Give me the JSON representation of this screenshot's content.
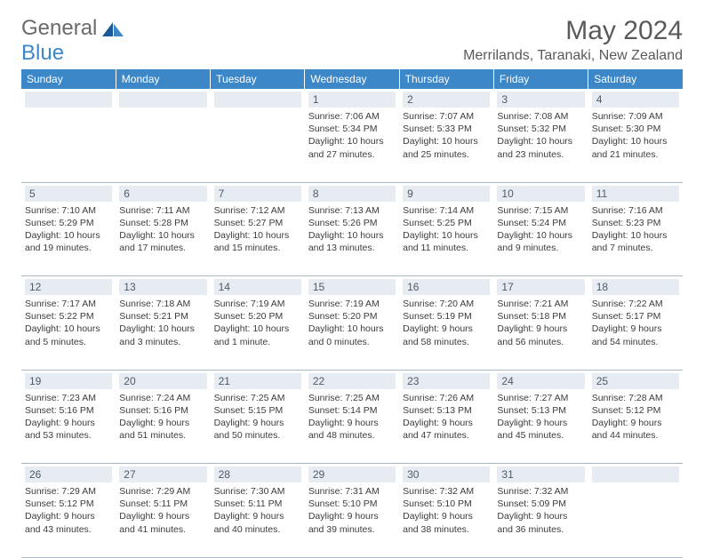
{
  "logo": {
    "text1": "General",
    "text2": "Blue",
    "color1": "#6a6a6a",
    "color2": "#3b87c8"
  },
  "title": "May 2024",
  "location": "Merrilands, Taranaki, New Zealand",
  "colors": {
    "header_bg": "#3b87c8",
    "header_text": "#ffffff",
    "daynum_bg": "#e6ecf2",
    "border": "#a9b8c6"
  },
  "weekdays": [
    "Sunday",
    "Monday",
    "Tuesday",
    "Wednesday",
    "Thursday",
    "Friday",
    "Saturday"
  ],
  "weeks": [
    [
      null,
      null,
      null,
      {
        "n": "1",
        "sr": "7:06 AM",
        "ss": "5:34 PM",
        "dl": "10 hours and 27 minutes."
      },
      {
        "n": "2",
        "sr": "7:07 AM",
        "ss": "5:33 PM",
        "dl": "10 hours and 25 minutes."
      },
      {
        "n": "3",
        "sr": "7:08 AM",
        "ss": "5:32 PM",
        "dl": "10 hours and 23 minutes."
      },
      {
        "n": "4",
        "sr": "7:09 AM",
        "ss": "5:30 PM",
        "dl": "10 hours and 21 minutes."
      }
    ],
    [
      {
        "n": "5",
        "sr": "7:10 AM",
        "ss": "5:29 PM",
        "dl": "10 hours and 19 minutes."
      },
      {
        "n": "6",
        "sr": "7:11 AM",
        "ss": "5:28 PM",
        "dl": "10 hours and 17 minutes."
      },
      {
        "n": "7",
        "sr": "7:12 AM",
        "ss": "5:27 PM",
        "dl": "10 hours and 15 minutes."
      },
      {
        "n": "8",
        "sr": "7:13 AM",
        "ss": "5:26 PM",
        "dl": "10 hours and 13 minutes."
      },
      {
        "n": "9",
        "sr": "7:14 AM",
        "ss": "5:25 PM",
        "dl": "10 hours and 11 minutes."
      },
      {
        "n": "10",
        "sr": "7:15 AM",
        "ss": "5:24 PM",
        "dl": "10 hours and 9 minutes."
      },
      {
        "n": "11",
        "sr": "7:16 AM",
        "ss": "5:23 PM",
        "dl": "10 hours and 7 minutes."
      }
    ],
    [
      {
        "n": "12",
        "sr": "7:17 AM",
        "ss": "5:22 PM",
        "dl": "10 hours and 5 minutes."
      },
      {
        "n": "13",
        "sr": "7:18 AM",
        "ss": "5:21 PM",
        "dl": "10 hours and 3 minutes."
      },
      {
        "n": "14",
        "sr": "7:19 AM",
        "ss": "5:20 PM",
        "dl": "10 hours and 1 minute."
      },
      {
        "n": "15",
        "sr": "7:19 AM",
        "ss": "5:20 PM",
        "dl": "10 hours and 0 minutes."
      },
      {
        "n": "16",
        "sr": "7:20 AM",
        "ss": "5:19 PM",
        "dl": "9 hours and 58 minutes."
      },
      {
        "n": "17",
        "sr": "7:21 AM",
        "ss": "5:18 PM",
        "dl": "9 hours and 56 minutes."
      },
      {
        "n": "18",
        "sr": "7:22 AM",
        "ss": "5:17 PM",
        "dl": "9 hours and 54 minutes."
      }
    ],
    [
      {
        "n": "19",
        "sr": "7:23 AM",
        "ss": "5:16 PM",
        "dl": "9 hours and 53 minutes."
      },
      {
        "n": "20",
        "sr": "7:24 AM",
        "ss": "5:16 PM",
        "dl": "9 hours and 51 minutes."
      },
      {
        "n": "21",
        "sr": "7:25 AM",
        "ss": "5:15 PM",
        "dl": "9 hours and 50 minutes."
      },
      {
        "n": "22",
        "sr": "7:25 AM",
        "ss": "5:14 PM",
        "dl": "9 hours and 48 minutes."
      },
      {
        "n": "23",
        "sr": "7:26 AM",
        "ss": "5:13 PM",
        "dl": "9 hours and 47 minutes."
      },
      {
        "n": "24",
        "sr": "7:27 AM",
        "ss": "5:13 PM",
        "dl": "9 hours and 45 minutes."
      },
      {
        "n": "25",
        "sr": "7:28 AM",
        "ss": "5:12 PM",
        "dl": "9 hours and 44 minutes."
      }
    ],
    [
      {
        "n": "26",
        "sr": "7:29 AM",
        "ss": "5:12 PM",
        "dl": "9 hours and 43 minutes."
      },
      {
        "n": "27",
        "sr": "7:29 AM",
        "ss": "5:11 PM",
        "dl": "9 hours and 41 minutes."
      },
      {
        "n": "28",
        "sr": "7:30 AM",
        "ss": "5:11 PM",
        "dl": "9 hours and 40 minutes."
      },
      {
        "n": "29",
        "sr": "7:31 AM",
        "ss": "5:10 PM",
        "dl": "9 hours and 39 minutes."
      },
      {
        "n": "30",
        "sr": "7:32 AM",
        "ss": "5:10 PM",
        "dl": "9 hours and 38 minutes."
      },
      {
        "n": "31",
        "sr": "7:32 AM",
        "ss": "5:09 PM",
        "dl": "9 hours and 36 minutes."
      },
      null
    ]
  ]
}
